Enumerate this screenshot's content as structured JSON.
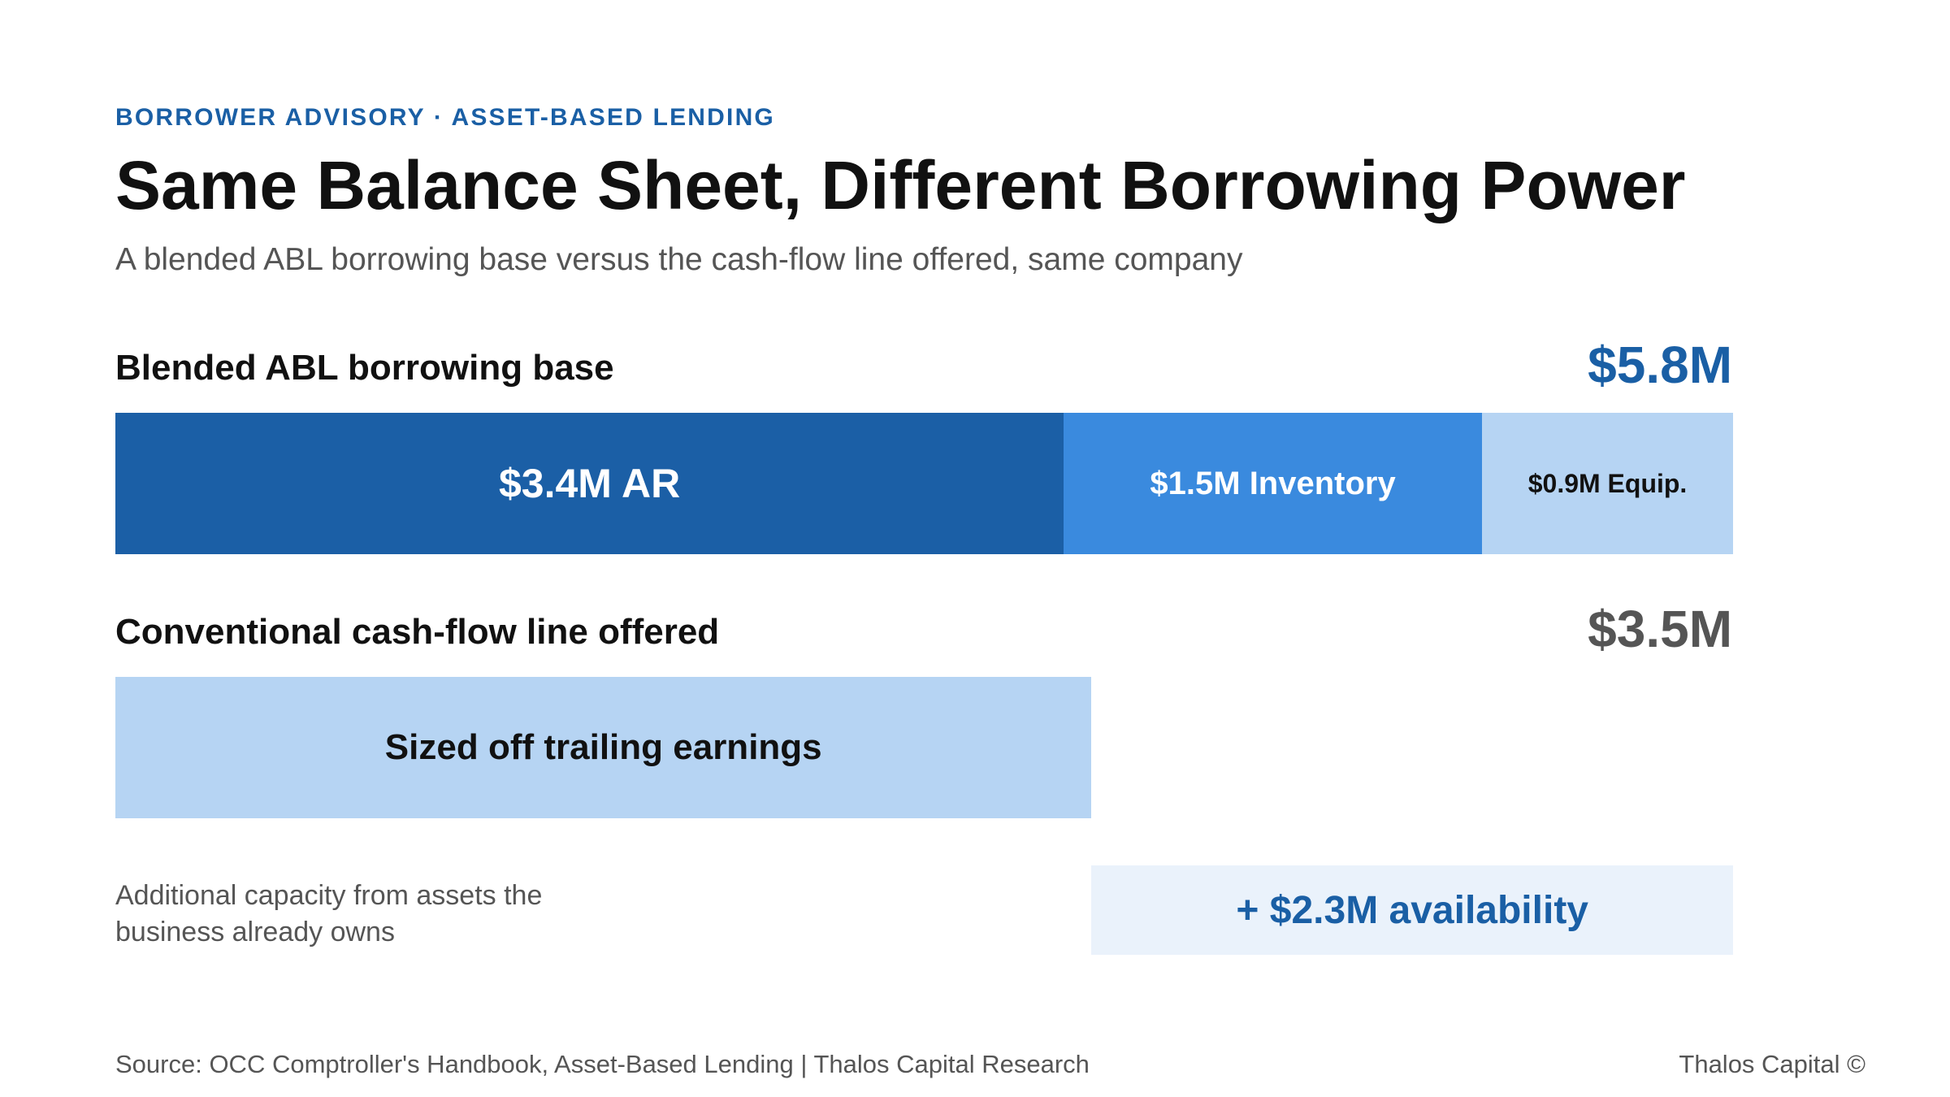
{
  "header": {
    "eyebrow": "BORROWER ADVISORY · ASSET-BASED LENDING",
    "title": "Same Balance Sheet, Different Borrowing Power",
    "subtitle": "A blended ABL borrowing base versus the cash-flow line offered, same company"
  },
  "chart_data": {
    "type": "bar",
    "orientation": "horizontal",
    "stacked": true,
    "units": "$M",
    "title": "Same Balance Sheet, Different Borrowing Power",
    "subtitle": "A blended ABL borrowing base versus the cash-flow line offered, same company",
    "xlim": [
      0,
      5.8
    ],
    "grid": false,
    "legend": "none",
    "rows": [
      {
        "label": "Blended ABL borrowing base",
        "total": 5.8,
        "total_label": "$5.8M",
        "total_color": "#1a5fa5",
        "segments": [
          {
            "label": "$3.4M AR",
            "value": 3.4,
            "color": "#1b5fa6",
            "text_color": "#ffffff",
            "font_size": 50
          },
          {
            "label": "$1.5M Inventory",
            "value": 1.5,
            "color": "#3a8ade",
            "text_color": "#ffffff",
            "font_size": 40
          },
          {
            "label": "$0.9M Equip.",
            "value": 0.9,
            "color": "#b6d4f3",
            "text_color": "#111111",
            "font_size": 32
          }
        ]
      },
      {
        "label": "Conventional cash-flow line offered",
        "total": 3.5,
        "total_label": "$3.5M",
        "total_color": "#555555",
        "segments": [
          {
            "label": "Sized off trailing earnings",
            "value": 3.5,
            "color": "#b6d4f3",
            "text_color": "#111111",
            "font_size": 44
          }
        ]
      }
    ],
    "annotation": {
      "note": "Additional capacity from assets the business already owns",
      "label": "+ $2.3M availability",
      "start": 3.5,
      "value": 2.3,
      "color": "#eaf2fb",
      "text_color": "#1a5fa5"
    }
  },
  "footer": {
    "source": "Source: OCC Comptroller's Handbook, Asset-Based Lending | Thalos Capital Research",
    "brand": "Thalos Capital ©"
  }
}
